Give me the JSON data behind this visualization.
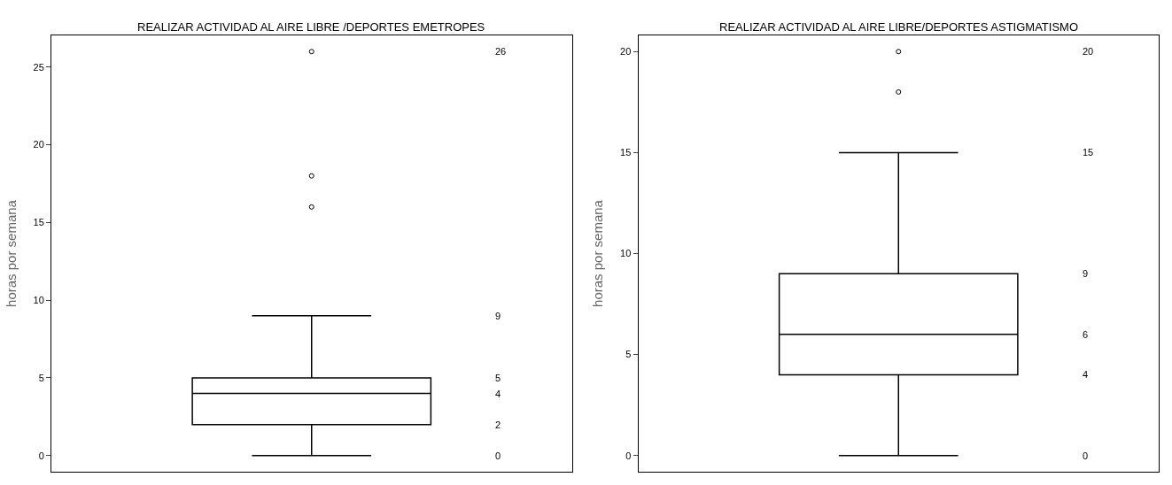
{
  "chart_data": [
    {
      "type": "box",
      "title": "REALIZAR ACTIVIDAD AL AIRE LIBRE /DEPORTES EMETROPES",
      "ylabel": "horas por semana",
      "categories": [
        null
      ],
      "ylim": [
        -1.04,
        27.04
      ],
      "yticks": [
        0,
        5,
        10,
        15,
        20,
        25
      ],
      "grid": false,
      "tick_labels": "y",
      "color": "#000000",
      "boxes": [
        {
          "low": 0,
          "q1": 2,
          "median": 4,
          "q3": 5,
          "high": 9,
          "outliers": [
            16,
            18,
            26
          ]
        }
      ],
      "annotations": [
        "26",
        "9",
        "5",
        "4",
        "2",
        "0"
      ]
    },
    {
      "type": "box",
      "title": "REALIZAR ACTIVIDAD AL AIRE LIBRE/DEPORTES ASTIGMATISMO",
      "ylabel": "horas por semana",
      "categories": [
        null
      ],
      "ylim": [
        -0.8,
        20.8
      ],
      "yticks": [
        0,
        5,
        10,
        15,
        20
      ],
      "grid": false,
      "tick_labels": "y",
      "color": "#000000",
      "boxes": [
        {
          "low": 0,
          "q1": 4,
          "median": 6,
          "q3": 9,
          "high": 15,
          "outliers": [
            18,
            20
          ]
        }
      ],
      "annotations": [
        "20",
        "15",
        "9",
        "6",
        "4",
        "0"
      ]
    }
  ]
}
